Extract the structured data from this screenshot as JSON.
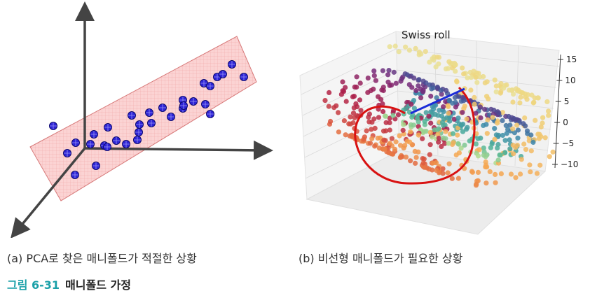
{
  "panel_a": {
    "caption": "(a) PCA로 찾은 매니폴드가 적절한 상황",
    "points": [
      [
        76,
        180
      ],
      [
        96,
        219
      ],
      [
        108,
        204
      ],
      [
        129,
        206
      ],
      [
        149,
        208
      ],
      [
        137,
        237
      ],
      [
        107,
        250
      ],
      [
        134,
        192
      ],
      [
        154,
        182
      ],
      [
        166,
        201
      ],
      [
        180,
        206
      ],
      [
        188,
        165
      ],
      [
        199,
        178
      ],
      [
        216,
        176
      ],
      [
        213,
        161
      ],
      [
        198,
        189
      ],
      [
        232,
        154
      ],
      [
        244,
        167
      ],
      [
        261,
        143
      ],
      [
        261,
        155
      ],
      [
        262,
        151
      ],
      [
        276,
        145
      ],
      [
        293,
        149
      ],
      [
        300,
        163
      ],
      [
        291,
        119
      ],
      [
        300,
        123
      ],
      [
        310,
        110
      ],
      [
        318,
        106
      ],
      [
        331,
        92
      ],
      [
        348,
        110
      ],
      [
        196,
        200
      ],
      [
        153,
        210
      ]
    ]
  },
  "panel_b": {
    "caption": "(b) 비선형 매니폴드가 필요한 상황",
    "chart_data": {
      "type": "scatter",
      "title": "Swiss roll",
      "zticks": [
        "15",
        "10",
        "5",
        "0",
        "−5",
        "−10"
      ],
      "zlim": [
        -12,
        17
      ]
    }
  },
  "figure_caption": {
    "number": "그림 6-31",
    "text": "매니폴드 가정"
  },
  "colors": {
    "plane_fill": "#f9c5c5",
    "plane_stroke": "#d77a7a",
    "point_fill": "#2d23d6",
    "axis": "#444444",
    "curve_red": "#d81212",
    "curve_blue": "#1a2bd8",
    "accent": "#1aa0a8"
  }
}
